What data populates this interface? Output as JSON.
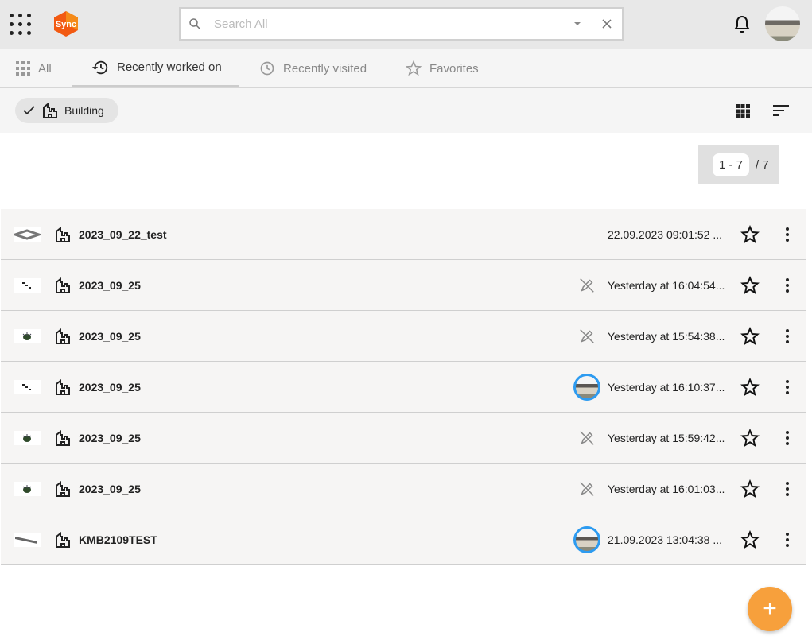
{
  "header": {
    "logo_text": "Sync",
    "search_placeholder": "Search All"
  },
  "tabs": [
    {
      "label": "All"
    },
    {
      "label": "Recently worked on"
    },
    {
      "label": "Recently visited"
    },
    {
      "label": "Favorites"
    }
  ],
  "filter": {
    "chip_label": "Building"
  },
  "pagination": {
    "range": "1 - 7",
    "total": "/ 7"
  },
  "rows": [
    {
      "name": "2023_09_22_test",
      "date": "22.09.2023 09:01:52 ...",
      "status": "none",
      "thumb": "frame"
    },
    {
      "name": "2023_09_25",
      "date": "Yesterday at 16:04:54...",
      "status": "edit-off",
      "thumb": "dots"
    },
    {
      "name": "2023_09_25",
      "date": "Yesterday at 15:54:38...",
      "status": "edit-off",
      "thumb": "plant"
    },
    {
      "name": "2023_09_25",
      "date": "Yesterday at 16:10:37...",
      "status": "avatar",
      "thumb": "dots"
    },
    {
      "name": "2023_09_25",
      "date": "Yesterday at 15:59:42...",
      "status": "edit-off",
      "thumb": "plant"
    },
    {
      "name": "2023_09_25",
      "date": "Yesterday at 16:01:03...",
      "status": "edit-off",
      "thumb": "plant"
    },
    {
      "name": "KMB2109TEST",
      "date": "21.09.2023 13:04:38 ...",
      "status": "avatar",
      "thumb": "beam"
    }
  ],
  "colors": {
    "accent": "#f7a03c",
    "avatar_ring": "#2d9bf0"
  },
  "fab": {
    "label": "+"
  }
}
